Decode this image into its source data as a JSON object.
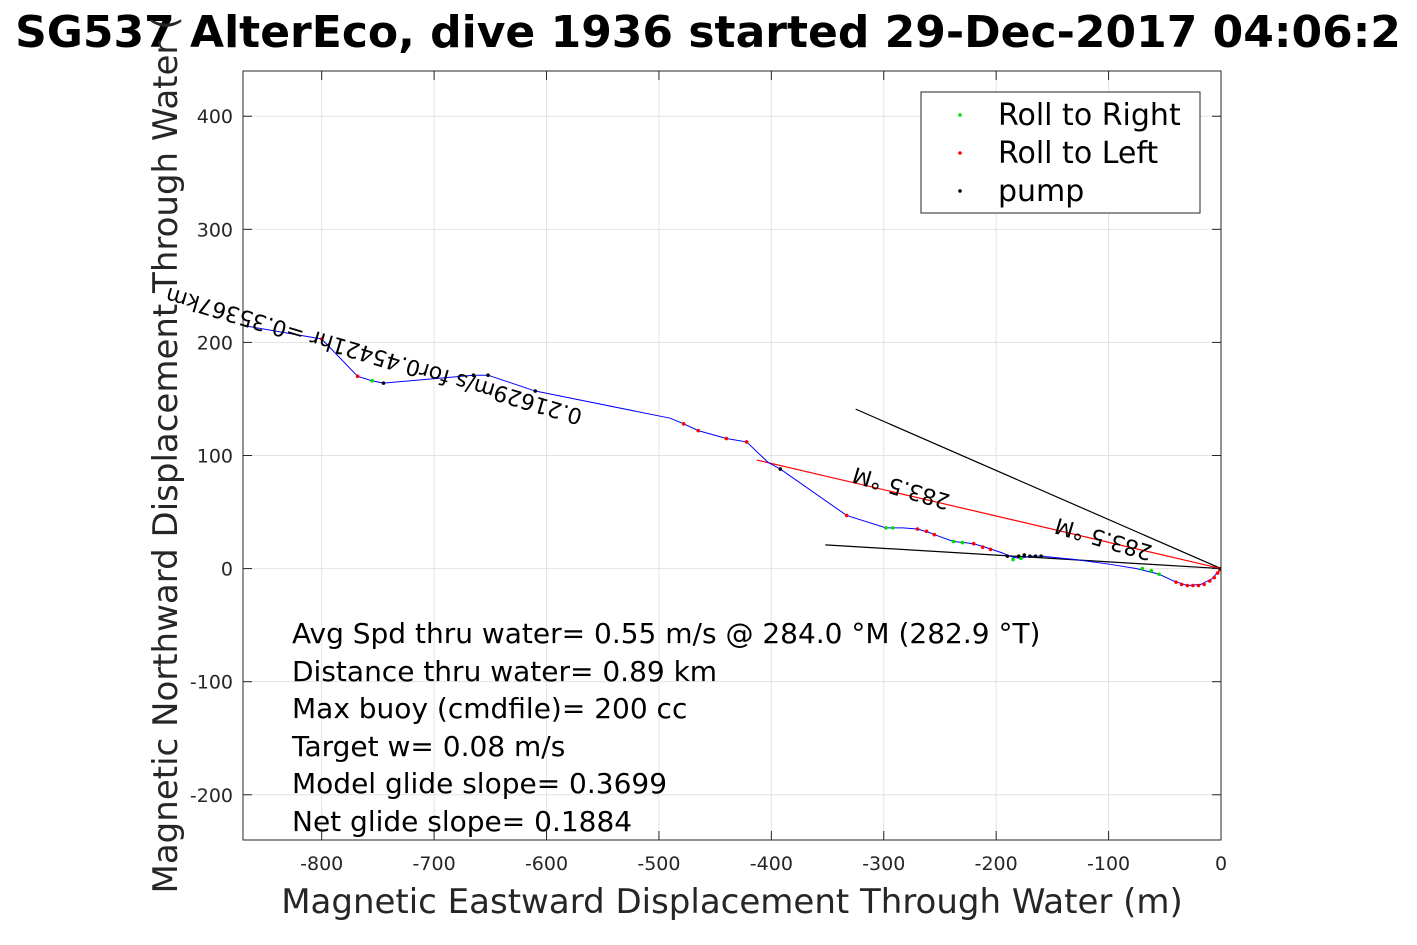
{
  "chart_data": {
    "type": "scatter",
    "title": "SG537 AlterEco, dive 1936 started 29-Dec-2017 04:06:2",
    "xlabel": "Magnetic Eastward Displacement Through Water (m)",
    "ylabel": "Magnetic Northward Displacement Through Water (",
    "xlim": [
      -870,
      0
    ],
    "ylim": [
      -240,
      440
    ],
    "xticks": [
      -800,
      -700,
      -600,
      -500,
      -400,
      -300,
      -200,
      -100,
      0
    ],
    "yticks": [
      -200,
      -100,
      0,
      100,
      200,
      300,
      400
    ],
    "grid": true,
    "legend_position": "top-right",
    "legend": [
      {
        "label": "Roll to Right",
        "color": "#00dd00"
      },
      {
        "label": "Roll to Left",
        "color": "#ff0000"
      },
      {
        "label": "pump",
        "color": "#000000"
      }
    ],
    "track": {
      "color": "#0000ff",
      "points": [
        [
          -870,
          215
        ],
        [
          -800,
          203
        ],
        [
          -768,
          170
        ],
        [
          -755,
          166
        ],
        [
          -745,
          164
        ],
        [
          -665,
          171
        ],
        [
          -652,
          171
        ],
        [
          -610,
          157
        ],
        [
          -600,
          155
        ],
        [
          -490,
          133
        ],
        [
          -478,
          128
        ],
        [
          -465,
          122
        ],
        [
          -440,
          115
        ],
        [
          -422,
          112
        ],
        [
          -403,
          94
        ],
        [
          -392,
          88
        ],
        [
          -333,
          47
        ],
        [
          -298,
          36
        ],
        [
          -283,
          36
        ],
        [
          -270,
          35
        ],
        [
          -260,
          32
        ],
        [
          -252,
          29
        ],
        [
          -238,
          24
        ],
        [
          -228,
          23
        ],
        [
          -220,
          22
        ],
        [
          -210,
          19
        ],
        [
          -195,
          14
        ],
        [
          -185,
          10
        ],
        [
          -178,
          9
        ],
        [
          -170,
          11
        ],
        [
          -160,
          11
        ],
        [
          -130,
          8
        ],
        [
          -100,
          4
        ],
        [
          -75,
          0
        ],
        [
          -55,
          -5
        ],
        [
          -42,
          -11
        ],
        [
          -30,
          -15
        ],
        [
          -18,
          -14
        ],
        [
          -8,
          -9
        ],
        [
          0,
          0
        ]
      ]
    },
    "markers": {
      "roll_right": [
        [
          -755,
          166
        ],
        [
          -298,
          36
        ],
        [
          -292,
          36
        ],
        [
          -238,
          24
        ],
        [
          -230,
          23
        ],
        [
          -185,
          8
        ],
        [
          -178,
          9
        ],
        [
          -70,
          0
        ],
        [
          -62,
          -2
        ],
        [
          -55,
          -5
        ]
      ],
      "roll_left": [
        [
          -800,
          203
        ],
        [
          -768,
          170
        ],
        [
          -478,
          128
        ],
        [
          -465,
          122
        ],
        [
          -440,
          115
        ],
        [
          -422,
          112
        ],
        [
          -333,
          47
        ],
        [
          -270,
          35
        ],
        [
          -262,
          33
        ],
        [
          -255,
          30
        ],
        [
          -220,
          22
        ],
        [
          -212,
          19
        ],
        [
          -205,
          17
        ],
        [
          -40,
          -12
        ],
        [
          -35,
          -14
        ],
        [
          -30,
          -15
        ],
        [
          -25,
          -15
        ],
        [
          -20,
          -15
        ],
        [
          -15,
          -14
        ],
        [
          -10,
          -11
        ],
        [
          -6,
          -8
        ],
        [
          -3,
          -4
        ],
        [
          -1,
          -1
        ]
      ],
      "pump": [
        [
          -745,
          164
        ],
        [
          -665,
          171
        ],
        [
          -652,
          171
        ],
        [
          -610,
          157
        ],
        [
          -392,
          88
        ],
        [
          -190,
          11
        ],
        [
          -180,
          11
        ],
        [
          -175,
          12
        ],
        [
          -170,
          11
        ],
        [
          -165,
          11
        ],
        [
          -160,
          11
        ],
        [
          0,
          0
        ]
      ]
    },
    "lines": [
      {
        "color": "#000000",
        "points": [
          [
            -325,
            141
          ],
          [
            0,
            0
          ]
        ]
      },
      {
        "color": "#000000",
        "points": [
          [
            -352,
            21
          ],
          [
            0,
            0
          ]
        ]
      },
      {
        "color": "#ff0000",
        "points": [
          [
            -413,
            96
          ],
          [
            0,
            0
          ]
        ]
      }
    ],
    "rotated_labels": [
      {
        "text": "0.21629m/s for0.45421hr =0.35367km",
        "at": [
          -567,
          140
        ],
        "angle_deg": 196.5,
        "font": 22
      },
      {
        "text": "283.5 °M",
        "at": [
          -240,
          65
        ],
        "angle_deg": 196.5,
        "font": 22
      },
      {
        "text": "283.5 °M",
        "at": [
          -60,
          20
        ],
        "angle_deg": 196.5,
        "font": 22
      }
    ],
    "annotation_lines": [
      "Avg Spd thru water=  0.55 m/s @ 284.0 °M (282.9 °T)",
      "Distance thru water=  0.89 km",
      "Max buoy (cmdfile)= 200 cc",
      "Target w= 0.08 m/s",
      "Model glide slope= 0.3699",
      "Net glide slope= 0.1884"
    ]
  }
}
